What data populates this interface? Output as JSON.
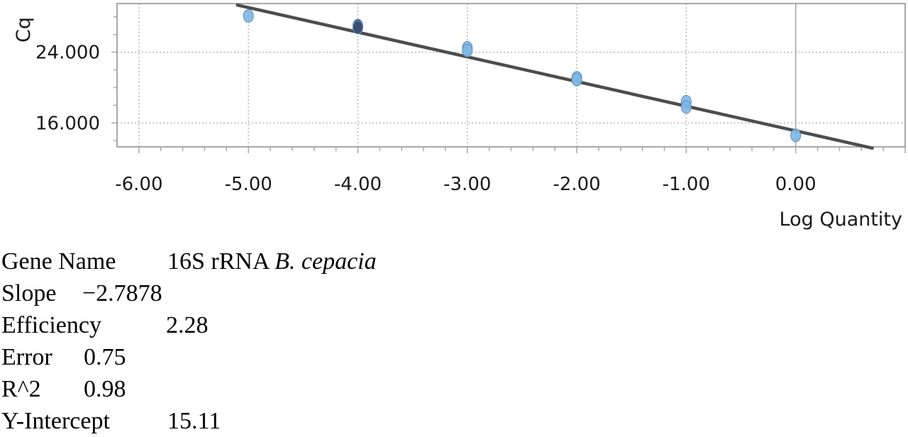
{
  "chart_data": {
    "type": "scatter",
    "xlabel": "Log Quantity",
    "ylabel": "Cq",
    "xlim": [
      -6.2,
      1.0
    ],
    "ylim": [
      13.3,
      29.5
    ],
    "x_ticks": [
      -6,
      -5,
      -4,
      -3,
      -2,
      -1,
      0
    ],
    "x_tick_labels": [
      "-6.00",
      "-5.00",
      "-4.00",
      "-3.00",
      "-2.00",
      "-1.00",
      "0.00"
    ],
    "y_ticks": [
      16,
      24
    ],
    "y_tick_labels": [
      "16.000",
      "24.000"
    ],
    "grid": true,
    "series": [
      {
        "kind": "points",
        "points": [
          {
            "x": -5,
            "y": 28.1,
            "color": "#7fb6e2"
          },
          {
            "x": -4,
            "y": 27.0,
            "color": "#3b4e6e"
          },
          {
            "x": -4,
            "y": 26.8,
            "color": "#3b4e6e"
          },
          {
            "x": -3,
            "y": 24.5,
            "color": "#7fb6e2"
          },
          {
            "x": -3,
            "y": 24.2,
            "color": "#7fb6e2"
          },
          {
            "x": -2,
            "y": 21.1,
            "color": "#7fb6e2"
          },
          {
            "x": -2,
            "y": 20.9,
            "color": "#7fb6e2"
          },
          {
            "x": -1,
            "y": 18.4,
            "color": "#7fb6e2"
          },
          {
            "x": -1,
            "y": 17.8,
            "color": "#7fb6e2"
          },
          {
            "x": 0,
            "y": 14.6,
            "color": "#7fb6e2"
          }
        ]
      },
      {
        "kind": "fit-line",
        "slope": -2.7878,
        "intercept": 15.11,
        "x_range": [
          -5.1,
          0.7
        ],
        "color": "#4d4d4d"
      }
    ]
  },
  "stats": {
    "gene": {
      "label": "Gene Name",
      "value": "16S rRNA",
      "value_italic": "B. cepacia"
    },
    "slope": {
      "label": "Slope",
      "value": "−2.7878"
    },
    "efficiency": {
      "label": "Efficiency",
      "value": "2.28"
    },
    "error": {
      "label": "Error",
      "value": "0.75"
    },
    "r2": {
      "label": "R^2",
      "value": "0.98"
    },
    "intercept": {
      "label": "Y-Intercept",
      "value": "15.11"
    }
  },
  "colors": {
    "grid": "#b8b8b8",
    "frame": "#a8a8a8",
    "zero_line": "#a0a0a0",
    "point_edge": "#5a8fc0"
  }
}
